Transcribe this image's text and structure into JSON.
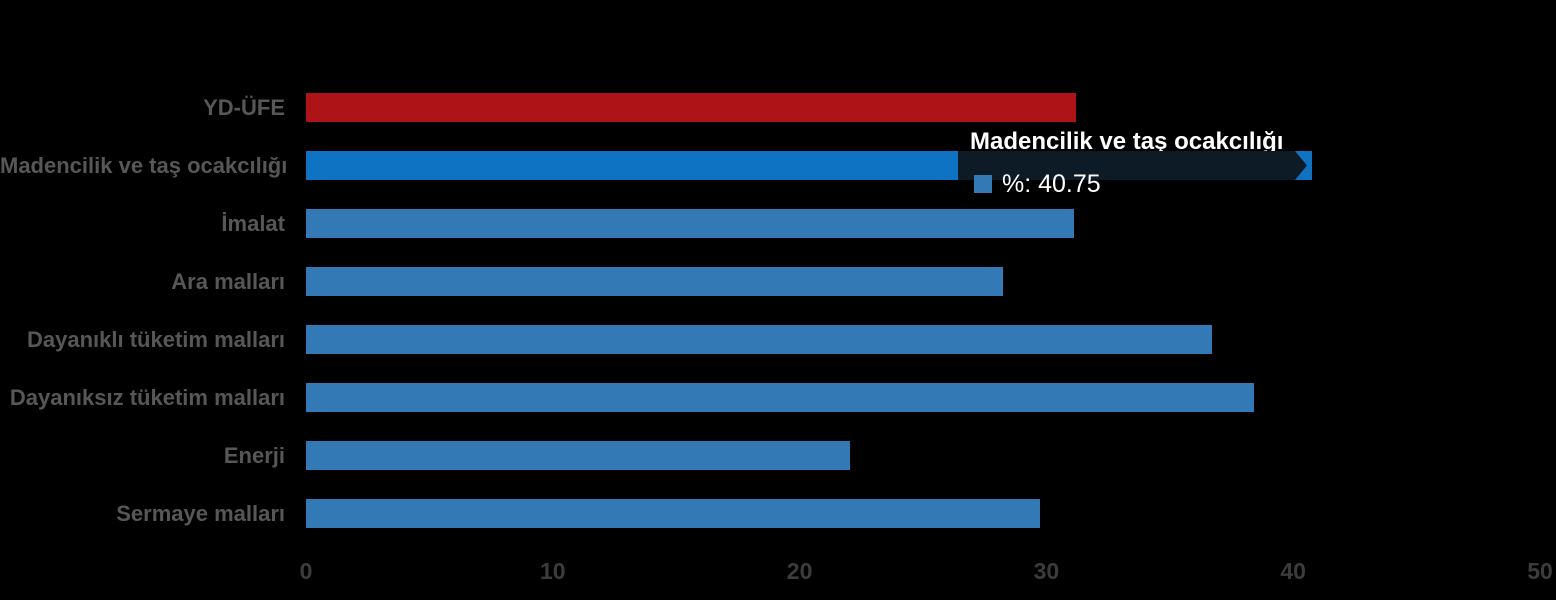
{
  "colors": {
    "background": "#000000",
    "category_label": "#575757",
    "axis_label": "#3c3c3c",
    "bar_red": "#ae1318",
    "bar_blue": "#3379b5",
    "bar_blue_hover": "#0f73c4",
    "tooltip_band": "#0d1b26",
    "tooltip_text": "#ffffff"
  },
  "chart_data": {
    "type": "bar",
    "orientation": "horizontal",
    "categories": [
      "YD-ÜFE",
      "Madencilik ve taş ocakcılığı",
      "İmalat",
      "Ara malları",
      "Dayanıklı tüketim malları",
      "Dayanıksız tüketim malları",
      "Enerji",
      "Sermaye malları"
    ],
    "values": [
      31.2,
      40.75,
      31.1,
      28.25,
      36.7,
      38.4,
      22.05,
      29.75
    ],
    "bar_colors": [
      "#ae1318",
      "#0f73c4",
      "#3379b5",
      "#3379b5",
      "#3379b5",
      "#3379b5",
      "#3379b5",
      "#3379b5"
    ],
    "highlighted_index": 1,
    "xlim": [
      0,
      50
    ],
    "x_ticks": [
      "0",
      "10",
      "20",
      "30",
      "40",
      "50"
    ],
    "grid": false,
    "legend": false
  },
  "tooltip": {
    "title": "Madencilik ve taş ocakcılığı",
    "value_label": "%: 40.75",
    "swatch_color": "#3379b5"
  }
}
